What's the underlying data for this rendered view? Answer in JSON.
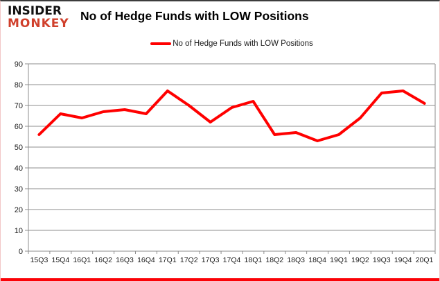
{
  "branding": {
    "line1": "INSIDER",
    "line2": "MONKEY"
  },
  "header": {
    "title": "No of Hedge Funds with LOW Positions"
  },
  "legend": {
    "label": "No of Hedge Funds with LOW Positions",
    "swatch_color": "#ff0000"
  },
  "colors": {
    "series_red": "#ff0000",
    "logo_red": "#d0402c",
    "grid_gray": "#8c8c8c",
    "axis_text": "#1a1a1a",
    "bottom_border_red": "#fb0207"
  },
  "chart_data": {
    "type": "line",
    "title": "No of Hedge Funds with LOW Positions",
    "categories": [
      "15Q3",
      "15Q4",
      "16Q1",
      "16Q2",
      "16Q3",
      "16Q4",
      "17Q1",
      "17Q2",
      "17Q3",
      "17Q4",
      "18Q1",
      "18Q2",
      "18Q3",
      "18Q4",
      "19Q1",
      "19Q2",
      "19Q3",
      "19Q4",
      "20Q1"
    ],
    "series": [
      {
        "name": "No of Hedge Funds with LOW Positions",
        "color": "#ff0000",
        "values": [
          56,
          66,
          64,
          67,
          68,
          66,
          77,
          70,
          62,
          69,
          72,
          56,
          57,
          53,
          56,
          64,
          76,
          77,
          71
        ]
      }
    ],
    "xlabel": "",
    "ylabel": "",
    "ylim": [
      0,
      90
    ],
    "ytick_step": 10,
    "grid": true,
    "legend_position": "top-center",
    "markers": false
  }
}
